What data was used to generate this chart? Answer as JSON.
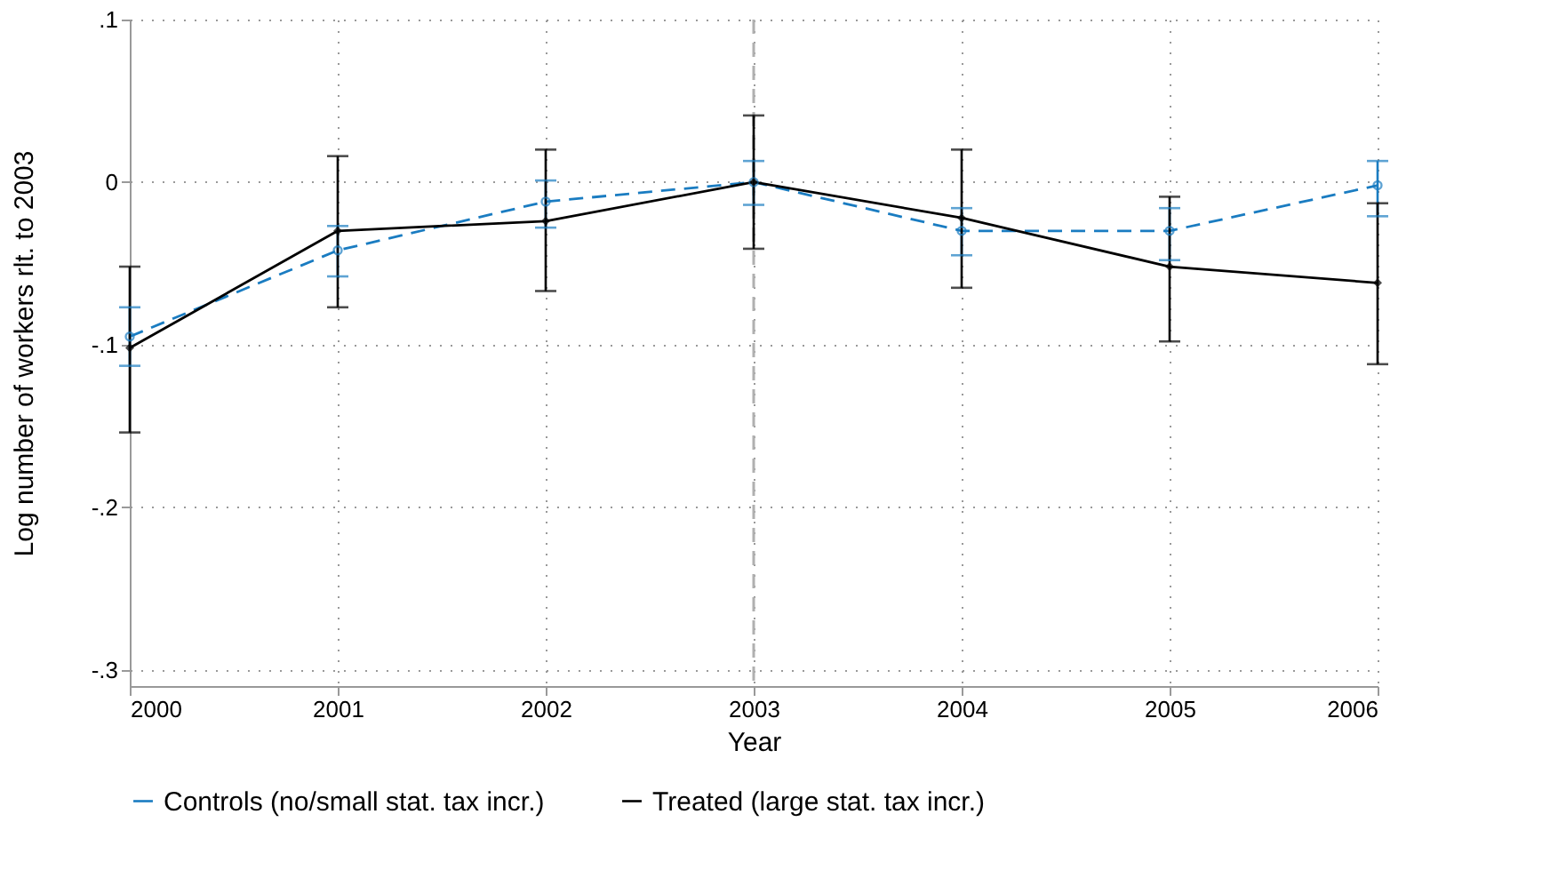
{
  "chart_data": {
    "type": "line",
    "xlabel": "Year",
    "ylabel": "Log number of workers rlt. to 2003",
    "x": [
      2000,
      2001,
      2002,
      2003,
      2004,
      2005,
      2006
    ],
    "series": [
      {
        "name": "Controls (no/small stat. tax incr.)",
        "color": "#1a7cc1",
        "line_style": "dashed",
        "marker": "circle",
        "values": [
          -0.095,
          -0.042,
          -0.012,
          0.0,
          -0.03,
          -0.03,
          -0.002
        ],
        "errors": [
          [
            -0.113,
            -0.077
          ],
          [
            -0.058,
            -0.027
          ],
          [
            -0.028,
            0.001
          ],
          [
            -0.014,
            0.013
          ],
          [
            -0.045,
            -0.016
          ],
          [
            -0.048,
            -0.016
          ],
          [
            -0.021,
            0.013
          ]
        ]
      },
      {
        "name": "Treated (large stat. tax incr.)",
        "color": "#000000",
        "line_style": "solid",
        "marker": "diamond",
        "values": [
          -0.102,
          -0.03,
          -0.024,
          0.0,
          -0.022,
          -0.052,
          -0.062
        ],
        "errors": [
          [
            -0.154,
            -0.052
          ],
          [
            -0.077,
            0.016
          ],
          [
            -0.067,
            0.02
          ],
          [
            -0.041,
            0.041
          ],
          [
            -0.065,
            0.02
          ],
          [
            -0.098,
            -0.009
          ],
          [
            -0.112,
            -0.013
          ]
        ]
      }
    ],
    "xlim": [
      2000,
      2006
    ],
    "xticks": [
      2000,
      2001,
      2002,
      2003,
      2004,
      2005,
      2006
    ],
    "ylim": [
      -0.31,
      0.1
    ],
    "yticks": [
      {
        "value": 0.1,
        "label": ".1"
      },
      {
        "value": 0,
        "label": "0"
      },
      {
        "value": -0.1,
        "label": "-.1"
      },
      {
        "value": -0.2,
        "label": "-.2"
      },
      {
        "value": -0.3,
        "label": "-.3"
      }
    ],
    "ref_lines": [
      {
        "axis": "x",
        "value": 2003,
        "color": "#b0b0b0",
        "line_style": "dashed"
      }
    ],
    "grid": true,
    "legend": "bottom"
  }
}
